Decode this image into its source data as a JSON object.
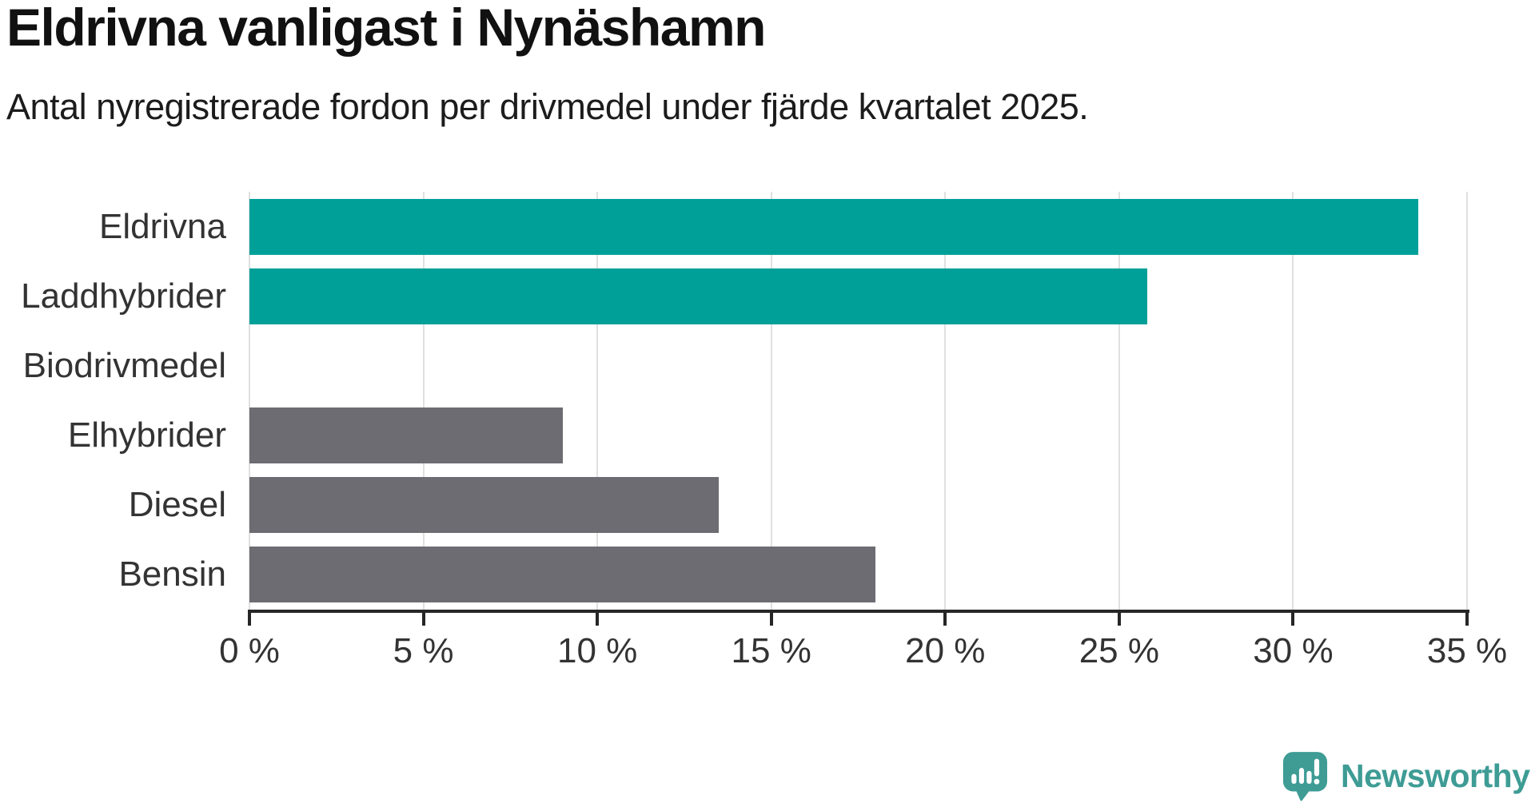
{
  "title": "Eldrivna vanligast i Nynäshamn",
  "subtitle": "Antal nyregistrerade fordon per drivmedel under fjärde kvartalet 2025.",
  "brand": {
    "name": "Newsworthy",
    "color": "#3e9c95"
  },
  "colors": {
    "highlight_bar": "#00a099",
    "default_bar": "#6d6c72",
    "gridline": "#e0e0e0",
    "axis": "#262626",
    "label_text": "#333333"
  },
  "chart_data": {
    "type": "bar",
    "orientation": "horizontal",
    "title": "Eldrivna vanligast i Nynäshamn",
    "subtitle": "Antal nyregistrerade fordon per drivmedel under fjärde kvartalet 2025.",
    "categories": [
      "Eldrivna",
      "Laddhybrider",
      "Biodrivmedel",
      "Elhybrider",
      "Diesel",
      "Bensin"
    ],
    "values": [
      33.6,
      25.8,
      0,
      9.0,
      13.5,
      18.0
    ],
    "unit": "%",
    "highlighted_categories": [
      "Eldrivna",
      "Laddhybrider"
    ],
    "xlim": [
      0,
      35
    ],
    "x_ticks": [
      0,
      5,
      10,
      15,
      20,
      25,
      30,
      35
    ],
    "x_tick_labels": [
      "0 %",
      "5 %",
      "10 %",
      "15 %",
      "20 %",
      "25 %",
      "30 %",
      "35 %"
    ],
    "grid": true,
    "legend": false
  }
}
